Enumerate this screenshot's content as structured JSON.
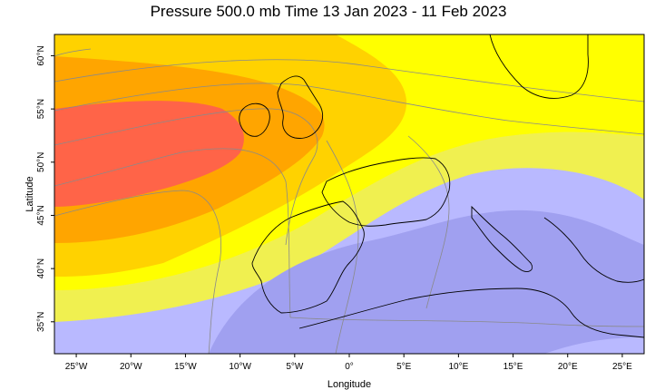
{
  "title": "Pressure 500.0 mb Time 13 Jan 2023 - 11 Feb 2023",
  "axes": {
    "xlabel": "Longitude",
    "ylabel": "Latitude",
    "lon_range": [
      -27,
      27
    ],
    "lat_range": [
      32,
      62
    ],
    "x_ticks": [
      {
        "value": -25,
        "label": "25°W"
      },
      {
        "value": -20,
        "label": "20°W"
      },
      {
        "value": -15,
        "label": "15°W"
      },
      {
        "value": -10,
        "label": "10°W"
      },
      {
        "value": -5,
        "label": "5°W"
      },
      {
        "value": 0,
        "label": "0°"
      },
      {
        "value": 5,
        "label": "5°E"
      },
      {
        "value": 10,
        "label": "10°E"
      },
      {
        "value": 15,
        "label": "15°E"
      },
      {
        "value": 20,
        "label": "20°E"
      },
      {
        "value": 25,
        "label": "25°E"
      }
    ],
    "y_ticks": [
      {
        "value": 35,
        "label": "35°N"
      },
      {
        "value": 40,
        "label": "40°N"
      },
      {
        "value": 45,
        "label": "45°N"
      },
      {
        "value": 50,
        "label": "50°N"
      },
      {
        "value": 55,
        "label": "55°N"
      },
      {
        "value": 60,
        "label": "60°N"
      }
    ]
  },
  "colors": {
    "band_highest": "#ff6448",
    "band_high": "#ffa500",
    "band_mid_high": "#ffd200",
    "band_mid": "#ffff00",
    "band_mid_low": "#f0f050",
    "band_low": "#b9b9ff",
    "band_lowest": "#a0a0f0",
    "coastline": "#000000",
    "contour": "#8a8a8a"
  },
  "chart_data": {
    "type": "heatmap",
    "variable": "Pressure",
    "level": "500.0 mb",
    "period": "13 Jan 2023 - 11 Feb 2023",
    "lon_range": [
      -27,
      27
    ],
    "lat_range": [
      32,
      62
    ],
    "color_order_high_to_low": [
      "band_highest",
      "band_high",
      "band_mid_high",
      "band_mid",
      "band_mid_low",
      "band_low",
      "band_lowest"
    ]
  }
}
